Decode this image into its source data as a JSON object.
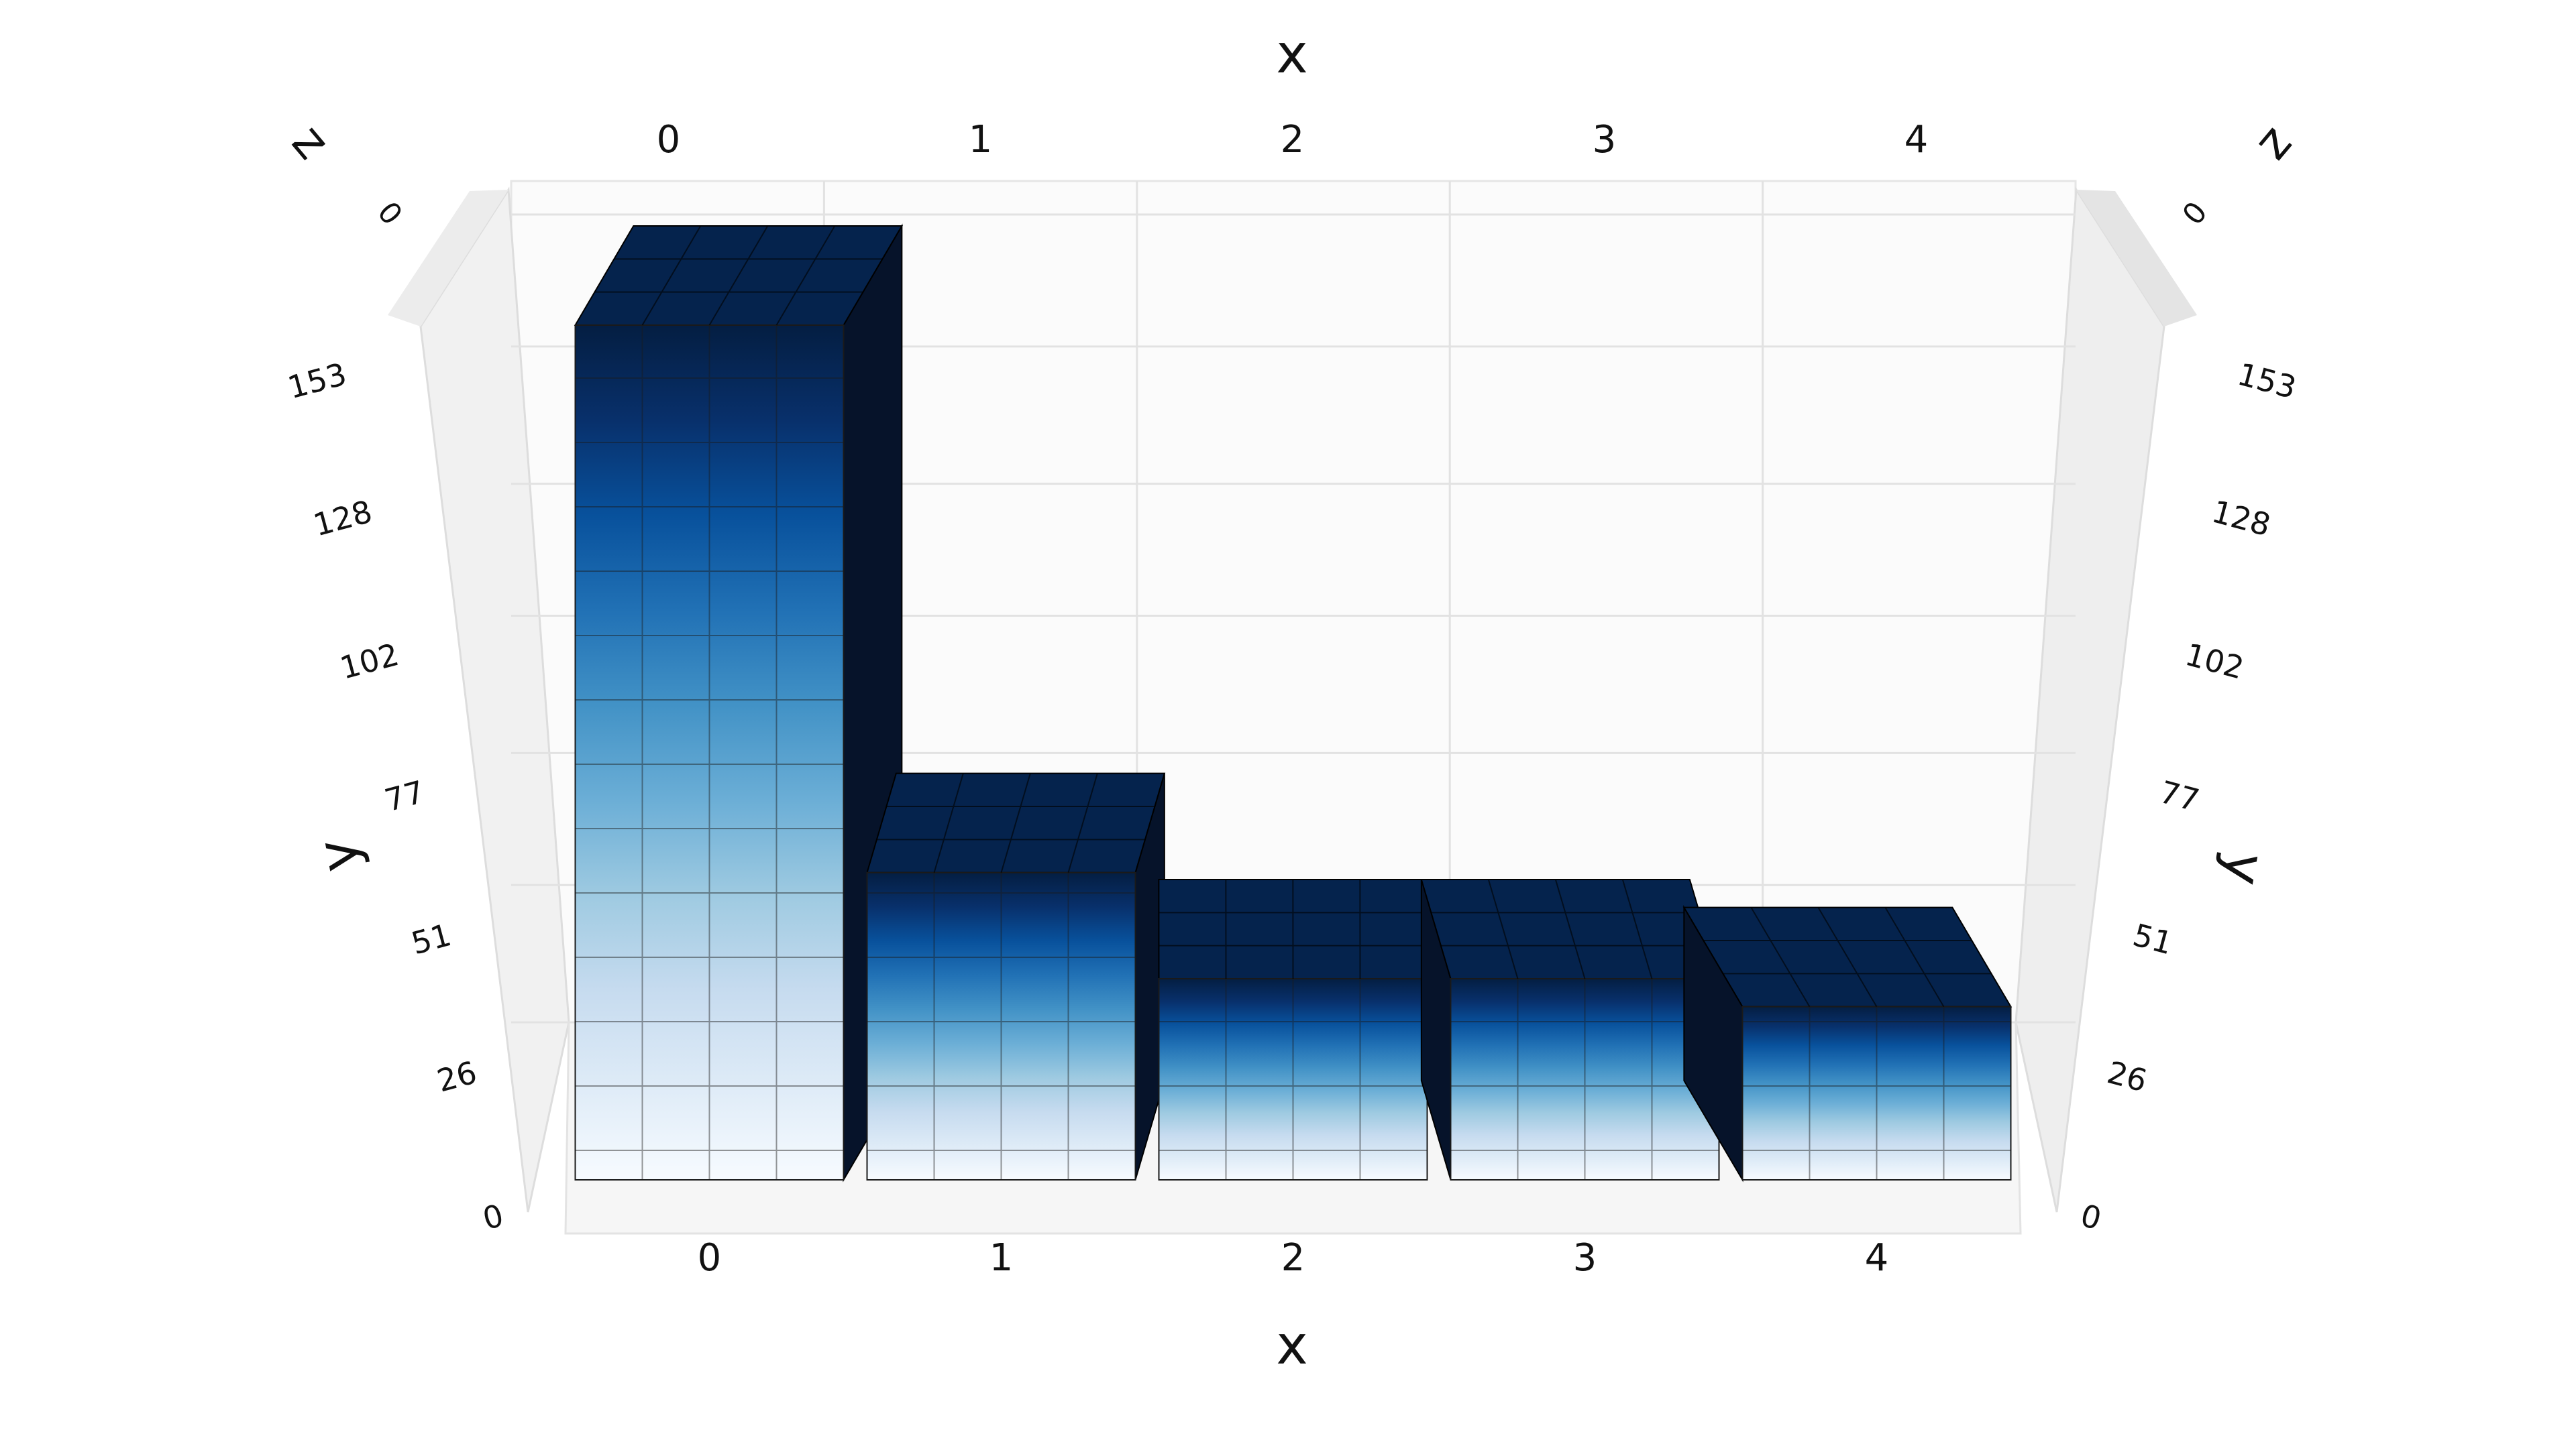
{
  "chart_data": {
    "type": "bar3d",
    "x_title": "x",
    "y_title": "y",
    "z_title": "z",
    "x": [
      0,
      1,
      2,
      3,
      4
    ],
    "values": [
      153,
      55,
      36,
      36,
      31
    ],
    "xlim": [
      -0.5,
      4.5
    ],
    "xticks": [
      0,
      1,
      2,
      3,
      4
    ],
    "ylim": [
      0,
      153
    ],
    "yticks": [
      0,
      26,
      51,
      77,
      102,
      128,
      153
    ],
    "zticks": [
      0
    ],
    "grid": true,
    "colorscale": [
      "#f7fbff",
      "#deebf7",
      "#c6dbef",
      "#9ecae1",
      "#6baed6",
      "#4292c6",
      "#2171b5",
      "#08519c",
      "#08306b",
      "#041e42"
    ]
  }
}
